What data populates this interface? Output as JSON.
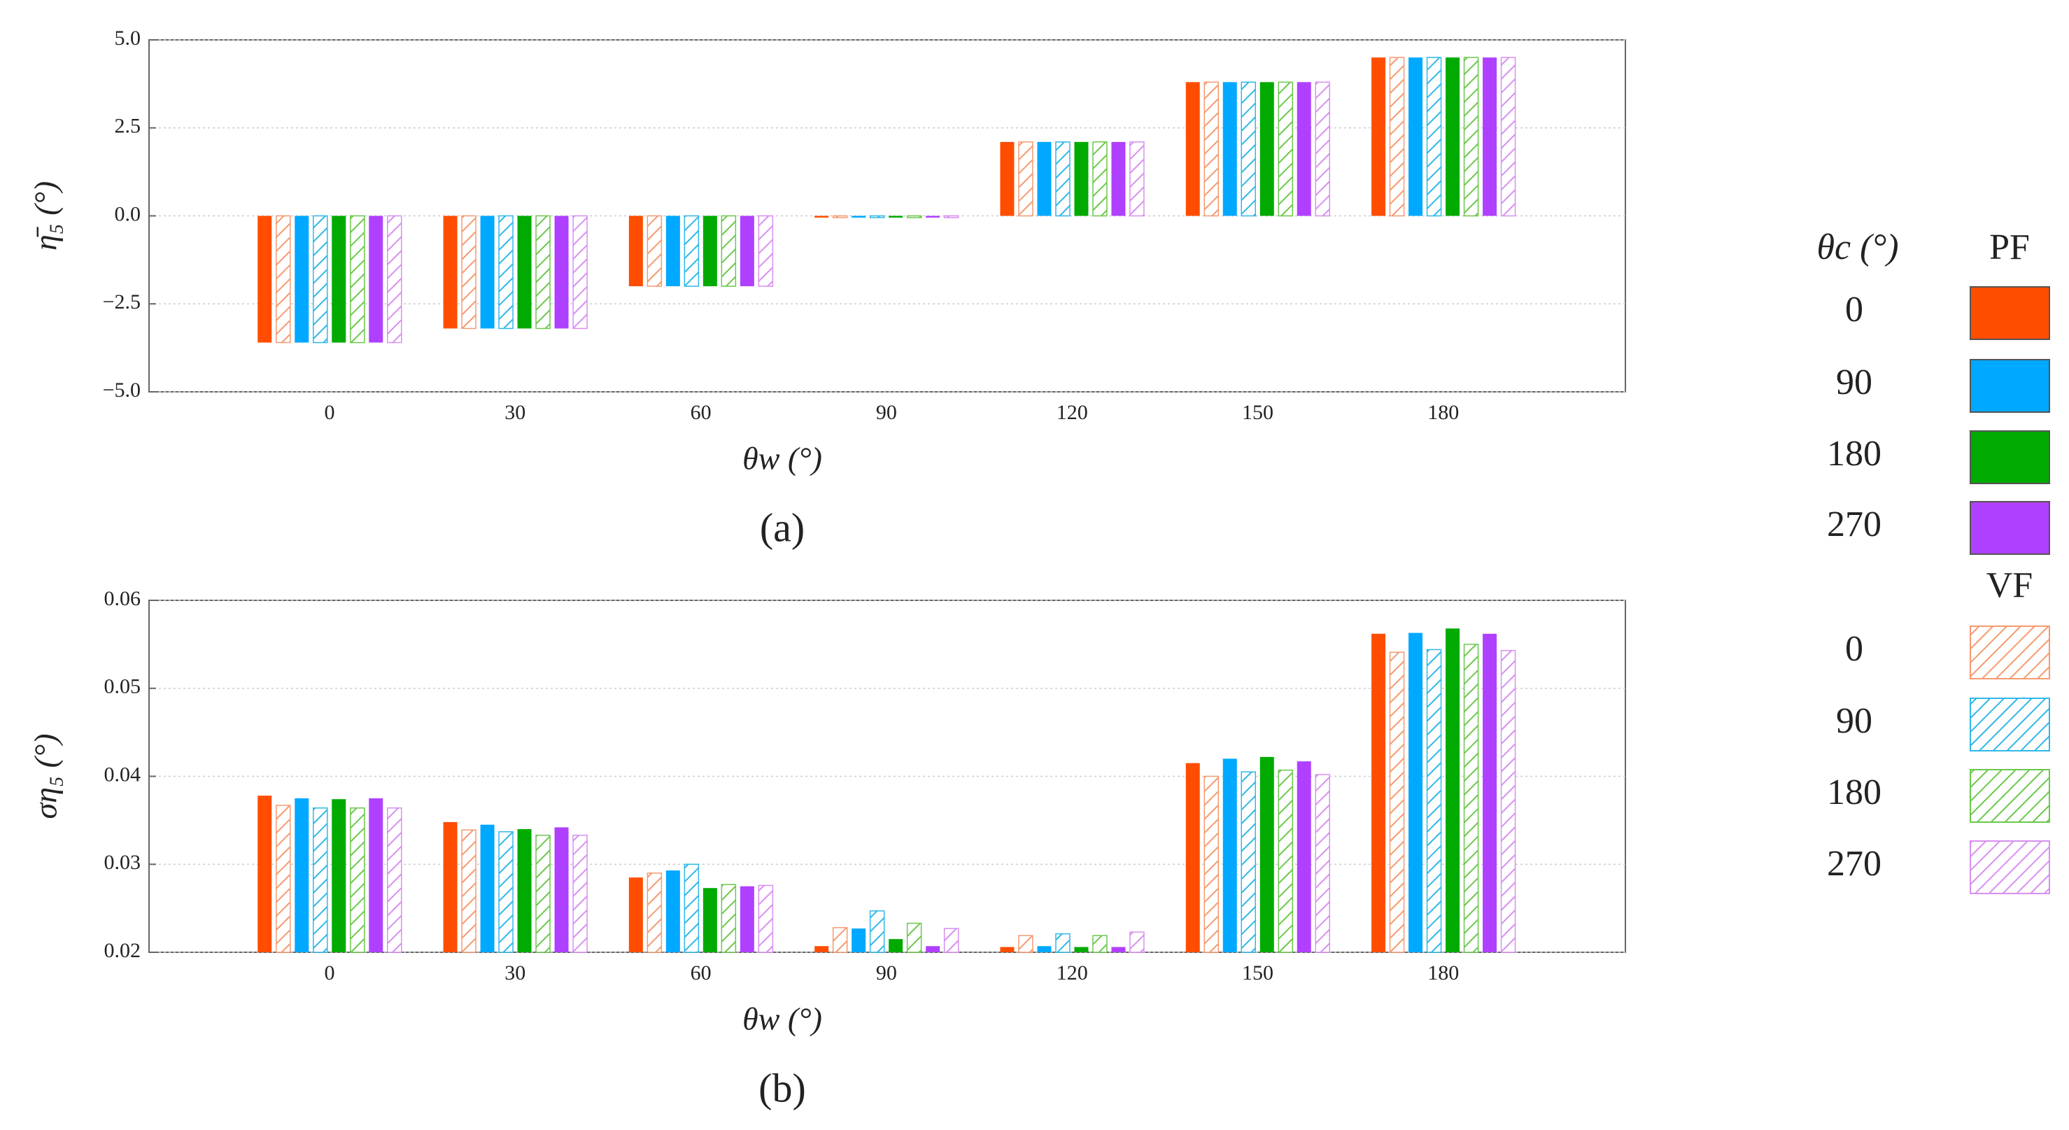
{
  "legend": {
    "title": "θc (°)",
    "groups": [
      "PF",
      "VF"
    ]
  },
  "chart_data": [
    {
      "type": "bar",
      "ylabel": "η̄₅ (°)",
      "xlabel": "θw (°)",
      "caption": "(a)",
      "categories": [
        "0",
        "30",
        "60",
        "90",
        "120",
        "150",
        "180"
      ],
      "ylim": [
        -5,
        5
      ],
      "yticks": [
        {
          "value": -5,
          "label": "−5.0"
        },
        {
          "value": -2.5,
          "label": "−2.5"
        },
        {
          "value": 0,
          "label": "0.0"
        },
        {
          "value": 2.5,
          "label": "2.5"
        },
        {
          "value": 5,
          "label": "5.0"
        }
      ],
      "grid": true,
      "series": [
        {
          "name": "0",
          "color": "#ff4d00",
          "hatch": false,
          "values": [
            -3.6,
            -3.2,
            -2.0,
            -0.05,
            2.1,
            3.8,
            4.5
          ]
        },
        {
          "name": "0",
          "color": "#f59a70",
          "hatch": true,
          "values": [
            -3.6,
            -3.2,
            -2.0,
            -0.05,
            2.1,
            3.8,
            4.5
          ]
        },
        {
          "name": "90",
          "color": "#00a8ff",
          "hatch": false,
          "values": [
            -3.6,
            -3.2,
            -2.0,
            -0.05,
            2.1,
            3.8,
            4.5
          ]
        },
        {
          "name": "90",
          "color": "#30b8e8",
          "hatch": true,
          "values": [
            -3.6,
            -3.2,
            -2.0,
            -0.05,
            2.1,
            3.8,
            4.5
          ]
        },
        {
          "name": "180",
          "color": "#00aa00",
          "hatch": false,
          "values": [
            -3.6,
            -3.2,
            -2.0,
            -0.05,
            2.1,
            3.8,
            4.5
          ]
        },
        {
          "name": "180",
          "color": "#6cc84c",
          "hatch": true,
          "values": [
            -3.6,
            -3.2,
            -2.0,
            -0.05,
            2.1,
            3.8,
            4.5
          ]
        },
        {
          "name": "270",
          "color": "#b040ff",
          "hatch": false,
          "values": [
            -3.6,
            -3.2,
            -2.0,
            -0.05,
            2.1,
            3.8,
            4.5
          ]
        },
        {
          "name": "270",
          "color": "#d890f0",
          "hatch": true,
          "values": [
            -3.6,
            -3.2,
            -2.0,
            -0.05,
            2.1,
            3.8,
            4.5
          ]
        }
      ]
    },
    {
      "type": "bar",
      "ylabel": "ση₅ (°)",
      "xlabel": "θw (°)",
      "caption": "(b)",
      "categories": [
        "0",
        "30",
        "60",
        "90",
        "120",
        "150",
        "180"
      ],
      "ylim": [
        0.02,
        0.06
      ],
      "yticks": [
        0.02,
        0.03,
        0.04,
        0.05,
        0.06
      ],
      "grid": true,
      "series": [
        {
          "values": [
            0.0378,
            0.0348,
            0.0285,
            0.0207,
            0.0206,
            0.0415,
            0.0562
          ]
        },
        {
          "values": [
            0.0367,
            0.0339,
            0.029,
            0.0228,
            0.0219,
            0.04,
            0.0541
          ]
        },
        {
          "values": [
            0.0375,
            0.0345,
            0.0293,
            0.0227,
            0.0207,
            0.042,
            0.0563
          ]
        },
        {
          "values": [
            0.0364,
            0.0337,
            0.03,
            0.0247,
            0.0221,
            0.0405,
            0.0544
          ]
        },
        {
          "values": [
            0.0374,
            0.034,
            0.0273,
            0.0215,
            0.0206,
            0.0422,
            0.0568
          ]
        },
        {
          "values": [
            0.0364,
            0.0333,
            0.0277,
            0.0233,
            0.0219,
            0.0407,
            0.055
          ]
        },
        {
          "values": [
            0.0375,
            0.0342,
            0.0275,
            0.0207,
            0.0206,
            0.0417,
            0.0562
          ]
        },
        {
          "values": [
            0.0364,
            0.0333,
            0.0276,
            0.0227,
            0.0223,
            0.0402,
            0.0543
          ]
        }
      ]
    }
  ]
}
